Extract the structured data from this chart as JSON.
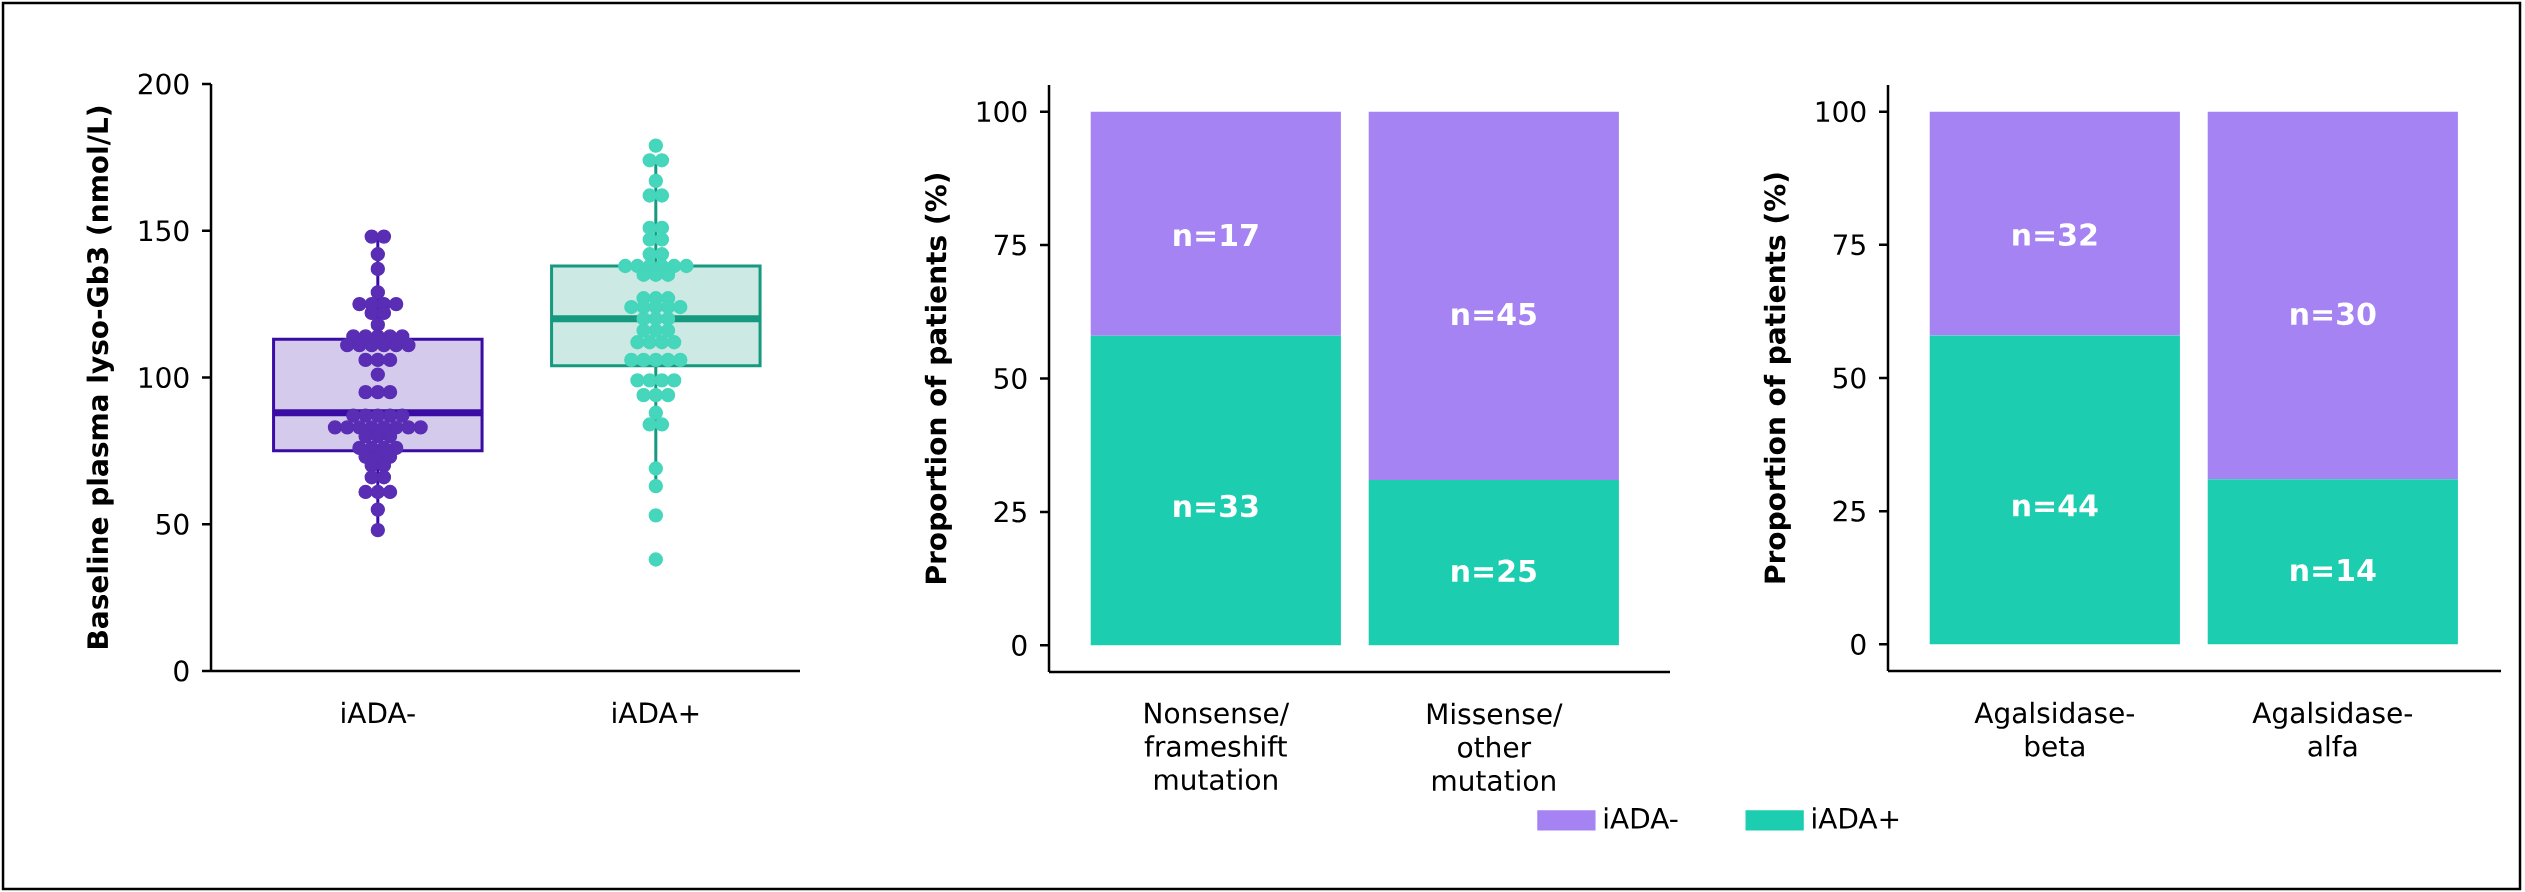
{
  "chart_data": [
    {
      "type": "box",
      "categories": [
        "iADA-",
        "iADA+"
      ],
      "ylabel": "Baseline plasma lyso-Gb3 (nmol/L)",
      "ylim": [
        0,
        200
      ],
      "yticks": [
        0,
        50,
        100,
        150,
        200
      ],
      "colors": [
        "#3a0ca3",
        "#159a80"
      ],
      "boxes": [
        {
          "low": 48,
          "q1": 75,
          "median": 88,
          "q3": 113,
          "high": 148
        },
        {
          "low": 63,
          "q1": 104,
          "median": 120,
          "q3": 138,
          "high": 175
        }
      ],
      "series": [
        {
          "type": "scatter",
          "marker": "circle",
          "color": "#5a2db5",
          "x": [
            "iADA-",
            "iADA-",
            "iADA-",
            "iADA-",
            "iADA-",
            "iADA-",
            "iADA-",
            "iADA-",
            "iADA-",
            "iADA-",
            "iADA-",
            "iADA-",
            "iADA-",
            "iADA-",
            "iADA-",
            "iADA-",
            "iADA-",
            "iADA-",
            "iADA-",
            "iADA-",
            "iADA-",
            "iADA-",
            "iADA-",
            "iADA-",
            "iADA-",
            "iADA-",
            "iADA-",
            "iADA-",
            "iADA-",
            "iADA-",
            "iADA-",
            "iADA-",
            "iADA-",
            "iADA-",
            "iADA-",
            "iADA-",
            "iADA-",
            "iADA-",
            "iADA-",
            "iADA-",
            "iADA-",
            "iADA-",
            "iADA-",
            "iADA-",
            "iADA-",
            "iADA-",
            "iADA-",
            "iADA-",
            "iADA-",
            "iADA-",
            "iADA-",
            "iADA-",
            "iADA-",
            "iADA-",
            "iADA-",
            "iADA-",
            "iADA-",
            "iADA-",
            "iADA-",
            "iADA-",
            "iADA-",
            "iADA-"
          ],
          "values": [
            148,
            148,
            142,
            137,
            129,
            125,
            125,
            125,
            125,
            122,
            122,
            118,
            114,
            114,
            114,
            114,
            114,
            111,
            111,
            111,
            111,
            111,
            111,
            106,
            106,
            106,
            101,
            95,
            95,
            95,
            87,
            87,
            87,
            87,
            87,
            83,
            83,
            83,
            83,
            83,
            83,
            83,
            83,
            80,
            80,
            80,
            76,
            76,
            76,
            76,
            73,
            73,
            73,
            70,
            70,
            66,
            66,
            61,
            61,
            61,
            55,
            48
          ]
        },
        {
          "type": "scatter",
          "marker": "circle",
          "color": "#45d6bb",
          "x": [
            "iADA+",
            "iADA+",
            "iADA+",
            "iADA+",
            "iADA+",
            "iADA+",
            "iADA+",
            "iADA+",
            "iADA+",
            "iADA+",
            "iADA+",
            "iADA+",
            "iADA+",
            "iADA+",
            "iADA+",
            "iADA+",
            "iADA+",
            "iADA+",
            "iADA+",
            "iADA+",
            "iADA+",
            "iADA+",
            "iADA+",
            "iADA+",
            "iADA+",
            "iADA+",
            "iADA+",
            "iADA+",
            "iADA+",
            "iADA+",
            "iADA+",
            "iADA+",
            "iADA+",
            "iADA+",
            "iADA+",
            "iADA+",
            "iADA+",
            "iADA+",
            "iADA+",
            "iADA+",
            "iADA+",
            "iADA+",
            "iADA+",
            "iADA+",
            "iADA+",
            "iADA+",
            "iADA+",
            "iADA+",
            "iADA+",
            "iADA+",
            "iADA+",
            "iADA+",
            "iADA+",
            "iADA+",
            "iADA+",
            "iADA+",
            "iADA+",
            "iADA+"
          ],
          "values": [
            179,
            174,
            174,
            167,
            162,
            162,
            151,
            151,
            147,
            147,
            142,
            142,
            138,
            138,
            138,
            138,
            138,
            138,
            135,
            135,
            135,
            127,
            127,
            127,
            124,
            124,
            124,
            124,
            124,
            120,
            120,
            120,
            116,
            116,
            116,
            112,
            112,
            112,
            112,
            106,
            106,
            106,
            106,
            106,
            99,
            99,
            99,
            99,
            94,
            94,
            94,
            88,
            84,
            84,
            69,
            63,
            53,
            38
          ]
        }
      ]
    },
    {
      "type": "bar",
      "stacked": true,
      "categories": [
        "Nonsense/ frameshift mutation",
        "Missense/ other mutation"
      ],
      "ylabel": "Proportion of patients (%)",
      "ylim": [
        -5,
        105
      ],
      "yticks": [
        0,
        25,
        50,
        75,
        100
      ],
      "series": [
        {
          "color": "#1ccdb0",
          "values": [
            58,
            31
          ]
        },
        {
          "color": "#a583f3",
          "values": [
            42,
            69
          ]
        }
      ],
      "annotations": [
        "n=33",
        "n=25",
        "n=17",
        "n=45"
      ]
    },
    {
      "type": "bar",
      "stacked": true,
      "categories": [
        "Agalsidase-beta",
        "Agalsidase-alfa"
      ],
      "ylabel": "Proportion of patients (%)",
      "ylim": [
        -5,
        105
      ],
      "yticks": [
        0,
        25,
        50,
        75,
        100
      ],
      "legend": "bottom",
      "series": [
        {
          "name": "iADA+",
          "color": "#1ccdb0",
          "values": [
            58,
            31
          ]
        },
        {
          "name": "iADA-",
          "color": "#a583f3",
          "values": [
            42,
            69
          ]
        }
      ],
      "annotations": [
        "n=44",
        "n=14",
        "n=32",
        "n=30"
      ]
    }
  ]
}
